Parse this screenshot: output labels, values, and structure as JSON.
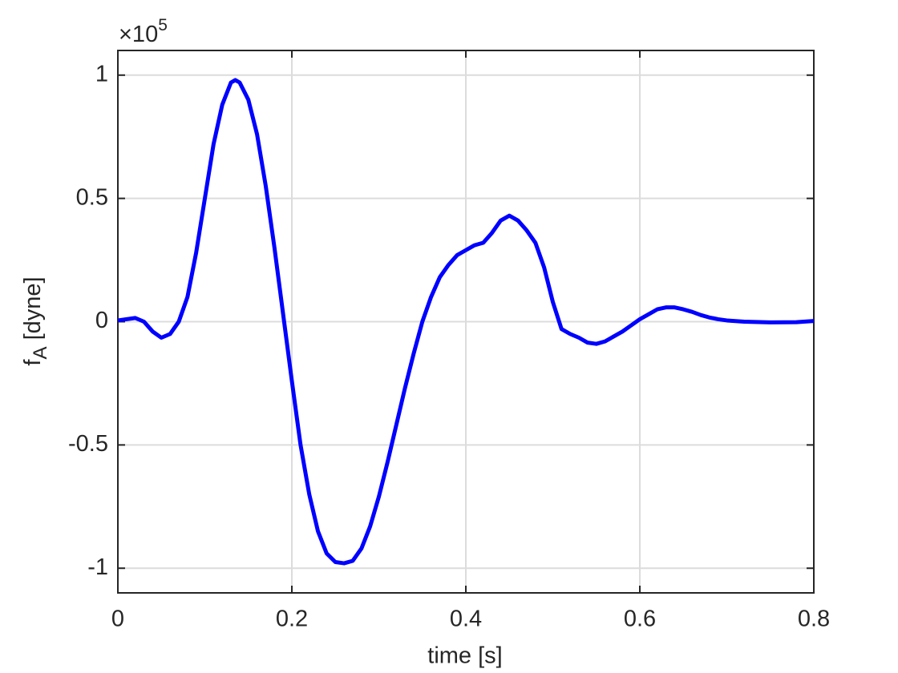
{
  "chart_data": {
    "type": "line",
    "xlabel": "time [s]",
    "ylabel": {
      "main": "f",
      "sub": "A",
      "rest": " [dyne]"
    },
    "y_exponent": {
      "base": "×10",
      "power": "5"
    },
    "xlim": [
      0,
      0.8
    ],
    "ylim": [
      -1.1,
      1.1
    ],
    "xticks": [
      0,
      0.2,
      0.4,
      0.6,
      0.8
    ],
    "yticks": [
      -1,
      -0.5,
      0,
      0.5,
      1
    ],
    "grid": true,
    "x": [
      0,
      0.02,
      0.03,
      0.04,
      0.05,
      0.06,
      0.07,
      0.08,
      0.09,
      0.1,
      0.11,
      0.12,
      0.13,
      0.135,
      0.14,
      0.15,
      0.16,
      0.17,
      0.18,
      0.19,
      0.2,
      0.21,
      0.22,
      0.23,
      0.24,
      0.25,
      0.26,
      0.27,
      0.28,
      0.29,
      0.3,
      0.31,
      0.32,
      0.33,
      0.34,
      0.35,
      0.36,
      0.37,
      0.38,
      0.39,
      0.4,
      0.41,
      0.42,
      0.43,
      0.44,
      0.45,
      0.46,
      0.47,
      0.48,
      0.49,
      0.5,
      0.51,
      0.52,
      0.53,
      0.54,
      0.55,
      0.56,
      0.57,
      0.58,
      0.59,
      0.6,
      0.61,
      0.62,
      0.63,
      0.64,
      0.65,
      0.66,
      0.67,
      0.68,
      0.69,
      0.7,
      0.72,
      0.75,
      0.78,
      0.8
    ],
    "series": [
      {
        "name": "f_A",
        "color": "#0000ff",
        "values": [
          0.005,
          0.015,
          0.0,
          -0.04,
          -0.065,
          -0.05,
          0.0,
          0.1,
          0.28,
          0.5,
          0.72,
          0.88,
          0.97,
          0.98,
          0.97,
          0.9,
          0.76,
          0.55,
          0.3,
          0.03,
          -0.24,
          -0.5,
          -0.7,
          -0.85,
          -0.94,
          -0.975,
          -0.98,
          -0.97,
          -0.92,
          -0.83,
          -0.71,
          -0.57,
          -0.42,
          -0.27,
          -0.13,
          0.0,
          0.1,
          0.18,
          0.23,
          0.27,
          0.29,
          0.31,
          0.32,
          0.36,
          0.41,
          0.43,
          0.41,
          0.37,
          0.32,
          0.22,
          0.08,
          -0.03,
          -0.05,
          -0.065,
          -0.085,
          -0.09,
          -0.08,
          -0.06,
          -0.04,
          -0.015,
          0.01,
          0.03,
          0.05,
          0.058,
          0.058,
          0.05,
          0.04,
          0.027,
          0.017,
          0.01,
          0.005,
          0.0,
          -0.003,
          -0.002,
          0.003
        ]
      }
    ]
  }
}
